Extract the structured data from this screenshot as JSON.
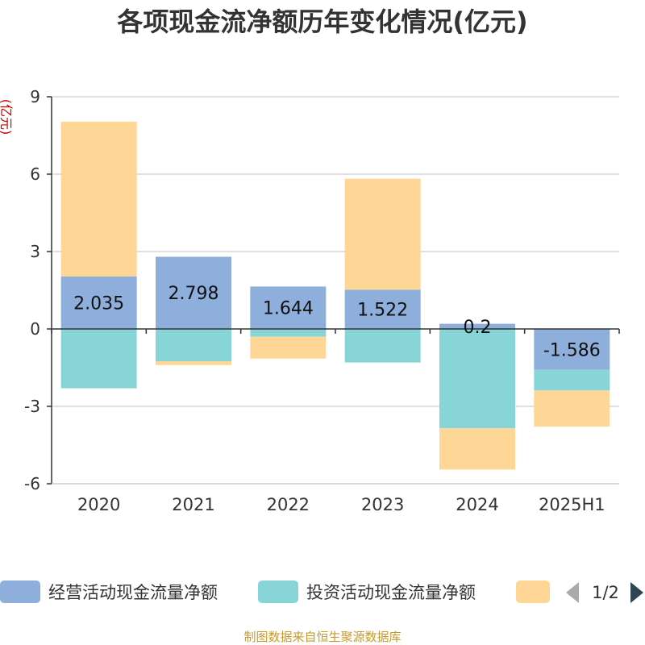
{
  "chart_data": {
    "type": "bar",
    "stacked": true,
    "title": "各项现金流净额历年变化情况(亿元)",
    "ylabel": "(亿元)",
    "ylim": [
      -6,
      9
    ],
    "yticks": [
      9,
      6,
      3,
      0,
      -3,
      -6
    ],
    "grid": true,
    "categories": [
      "2020",
      "2021",
      "2022",
      "2023",
      "2024",
      "2025H1"
    ],
    "series": [
      {
        "name": "经营活动现金流量净额",
        "color": "#8eaedb",
        "values": [
          2.035,
          2.798,
          1.644,
          1.522,
          0.2,
          -1.586
        ],
        "labels": [
          "2.035",
          "2.798",
          "1.644",
          "1.522",
          "0.2",
          "-1.586"
        ]
      },
      {
        "name": "投资活动现金流量净额",
        "color": "#88d5d7",
        "values": [
          -2.3,
          -1.25,
          -0.3,
          -1.3,
          -3.85,
          -0.8
        ]
      },
      {
        "name": "",
        "color": "#fed797",
        "values": [
          6.0,
          -0.15,
          -0.85,
          4.3,
          -1.6,
          -1.4
        ]
      }
    ],
    "legend_position": "bottom"
  },
  "legend": {
    "page": "1/2"
  },
  "source": "制图数据来自恒生聚源数据库"
}
